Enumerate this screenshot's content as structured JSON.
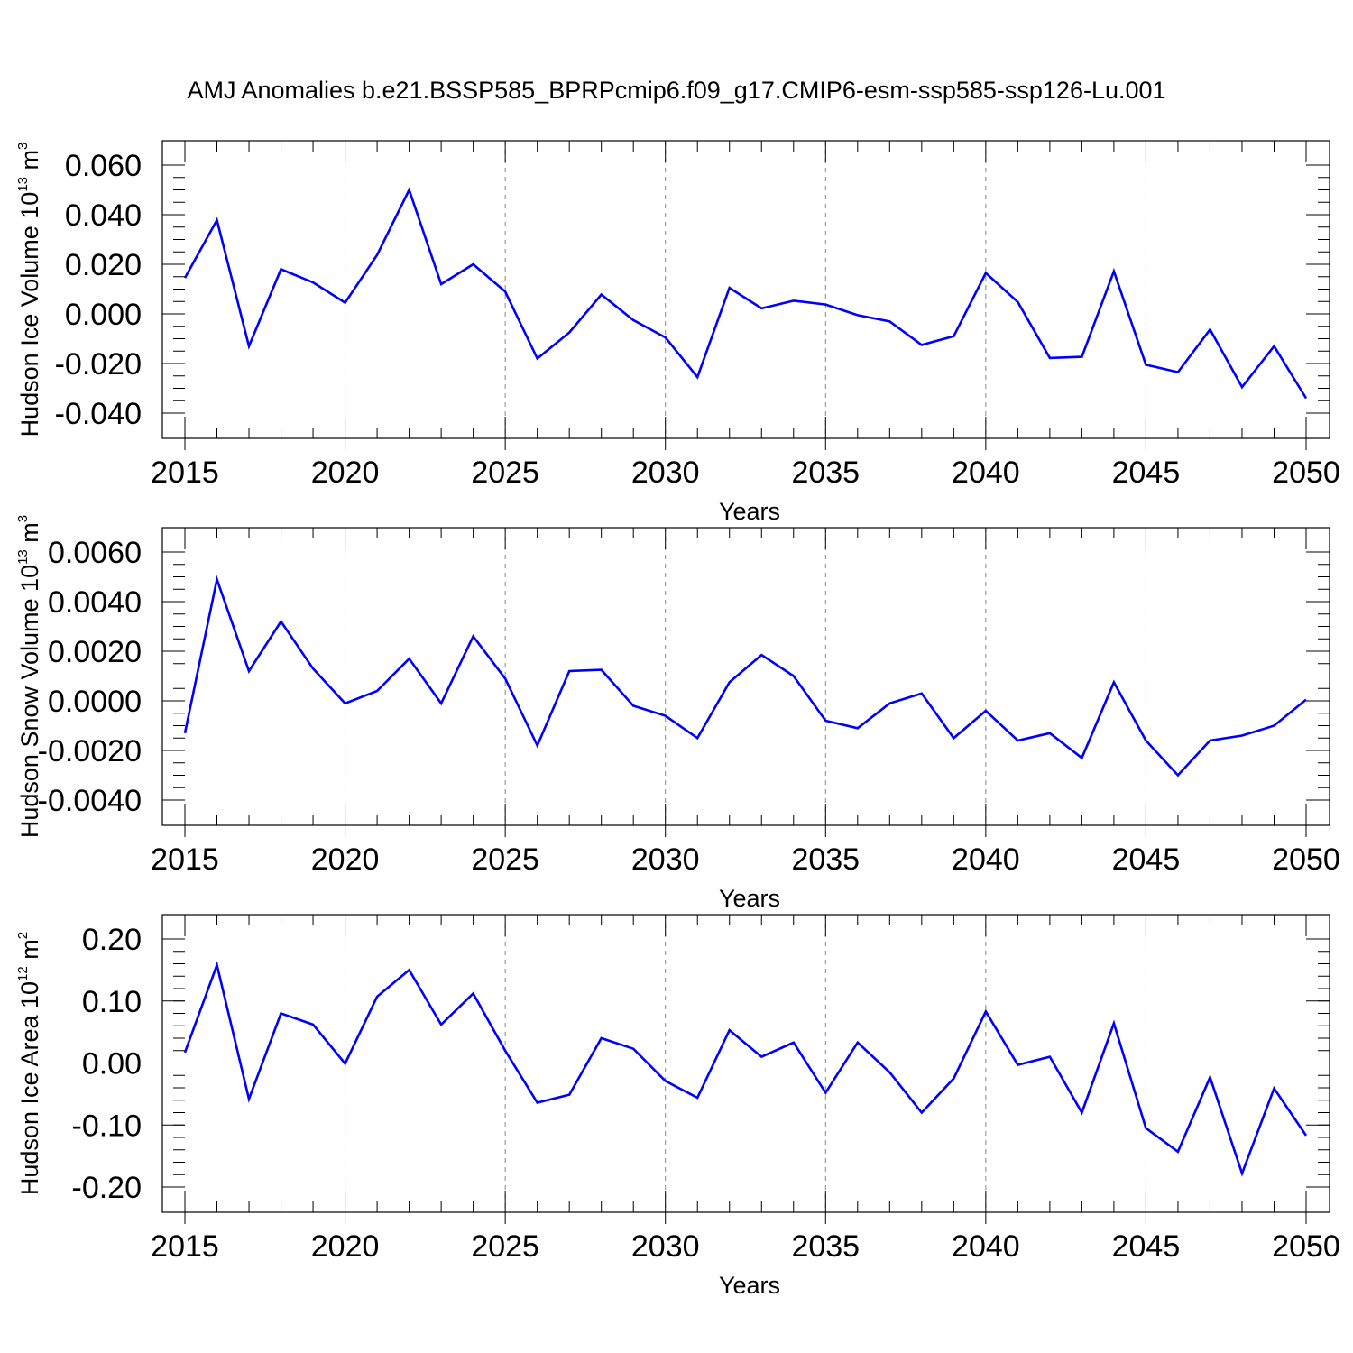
{
  "title": "AMJ Anomalies b.e21.BSSP585_BPRPcmip6.f09_g17.CMIP6-esm-ssp585-ssp126-Lu.001",
  "line_color": "#0000ff",
  "chart_data": [
    {
      "type": "line",
      "xlabel": "Years",
      "ylabel": {
        "text": "Hudson Ice Volume 10",
        "sup": "13",
        "unit": " m",
        "unit_sup": "3"
      },
      "x": [
        2015,
        2016,
        2017,
        2018,
        2019,
        2020,
        2021,
        2022,
        2023,
        2024,
        2025,
        2026,
        2027,
        2028,
        2029,
        2030,
        2031,
        2032,
        2033,
        2034,
        2035,
        2036,
        2037,
        2038,
        2039,
        2040,
        2041,
        2042,
        2043,
        2044,
        2045,
        2046,
        2047,
        2048,
        2049,
        2050
      ],
      "values": [
        0.0145,
        0.0378,
        -0.013,
        0.018,
        0.0127,
        0.0045,
        0.0238,
        0.05,
        0.012,
        0.02,
        0.009,
        -0.018,
        -0.0075,
        0.0078,
        -0.0025,
        -0.0095,
        -0.0255,
        0.0105,
        0.0022,
        0.0053,
        0.0038,
        -0.0005,
        -0.003,
        -0.0125,
        -0.009,
        0.0165,
        0.0048,
        -0.0178,
        -0.0173,
        0.0172,
        -0.0205,
        -0.0235,
        -0.0063,
        -0.0295,
        -0.013,
        -0.034
      ],
      "xlim": [
        2015,
        2050
      ],
      "ylim": [
        -0.04,
        0.06
      ],
      "yticks": [
        -0.04,
        -0.02,
        0.0,
        0.02,
        0.04,
        0.06
      ],
      "ytick_labels": [
        "-0.040",
        "-0.020",
        "0.000",
        "0.020",
        "0.040",
        "0.060"
      ],
      "xticks": [
        2015,
        2020,
        2025,
        2030,
        2035,
        2040,
        2045,
        2050
      ],
      "xtick_labels": [
        "2015",
        "2020",
        "2025",
        "2030",
        "2035",
        "2040",
        "2045",
        "2050"
      ],
      "yminor": 0.005,
      "grid": "vertical-dashed"
    },
    {
      "type": "line",
      "xlabel": "Years",
      "ylabel": {
        "text": "Hudson Snow Volume 10",
        "sup": "13",
        "unit": " m",
        "unit_sup": "3"
      },
      "x": [
        2015,
        2016,
        2017,
        2018,
        2019,
        2020,
        2021,
        2022,
        2023,
        2024,
        2025,
        2026,
        2027,
        2028,
        2029,
        2030,
        2031,
        2032,
        2033,
        2034,
        2035,
        2036,
        2037,
        2038,
        2039,
        2040,
        2041,
        2042,
        2043,
        2044,
        2045,
        2046,
        2047,
        2048,
        2049,
        2050
      ],
      "values": [
        -0.0013,
        0.0049,
        0.0012,
        0.0032,
        0.0013,
        -0.0001,
        0.0004,
        0.0017,
        -0.0001,
        0.0026,
        0.0009,
        -0.0018,
        0.0012,
        0.00125,
        -0.0002,
        -0.0006,
        -0.0015,
        0.00075,
        0.00185,
        0.001,
        -0.0008,
        -0.0011,
        -0.0001,
        0.0003,
        -0.0015,
        -0.0004,
        -0.0016,
        -0.0013,
        -0.0023,
        0.00075,
        -0.0016,
        -0.003,
        -0.0016,
        -0.0014,
        -0.001,
        5e-05
      ],
      "xlim": [
        2015,
        2050
      ],
      "ylim": [
        -0.004,
        0.006
      ],
      "yticks": [
        -0.004,
        -0.002,
        0.0,
        0.002,
        0.004,
        0.006
      ],
      "ytick_labels": [
        "-0.0040",
        "-0.0020",
        "0.0000",
        "0.0020",
        "0.0040",
        "0.0060"
      ],
      "xticks": [
        2015,
        2020,
        2025,
        2030,
        2035,
        2040,
        2045,
        2050
      ],
      "xtick_labels": [
        "2015",
        "2020",
        "2025",
        "2030",
        "2035",
        "2040",
        "2045",
        "2050"
      ],
      "yminor": 0.0005,
      "grid": "vertical-dashed"
    },
    {
      "type": "line",
      "xlabel": "Years",
      "ylabel": {
        "text": "Hudson Ice Area 10",
        "sup": "12",
        "unit": " m",
        "unit_sup": "2"
      },
      "x": [
        2015,
        2016,
        2017,
        2018,
        2019,
        2020,
        2021,
        2022,
        2023,
        2024,
        2025,
        2026,
        2027,
        2028,
        2029,
        2030,
        2031,
        2032,
        2033,
        2034,
        2035,
        2036,
        2037,
        2038,
        2039,
        2040,
        2041,
        2042,
        2043,
        2044,
        2045,
        2046,
        2047,
        2048,
        2049,
        2050
      ],
      "values": [
        0.017,
        0.158,
        -0.058,
        0.08,
        0.062,
        -0.001,
        0.107,
        0.15,
        0.062,
        0.112,
        0.02,
        -0.064,
        -0.051,
        0.04,
        0.023,
        -0.029,
        -0.056,
        0.053,
        0.01,
        0.033,
        -0.048,
        0.033,
        -0.015,
        -0.08,
        -0.025,
        0.083,
        -0.003,
        0.01,
        -0.08,
        0.064,
        -0.105,
        -0.143,
        -0.023,
        -0.178,
        -0.041,
        -0.117
      ],
      "xlim": [
        2015,
        2050
      ],
      "ylim": [
        -0.2,
        0.2
      ],
      "yticks": [
        -0.2,
        -0.1,
        0.0,
        0.1,
        0.2
      ],
      "ytick_labels": [
        "-0.20",
        "-0.10",
        "0.00",
        "0.10",
        "0.20"
      ],
      "xticks": [
        2015,
        2020,
        2025,
        2030,
        2035,
        2040,
        2045,
        2050
      ],
      "xtick_labels": [
        "2015",
        "2020",
        "2025",
        "2030",
        "2035",
        "2040",
        "2045",
        "2050"
      ],
      "yminor": 0.02,
      "grid": "vertical-dashed"
    }
  ]
}
